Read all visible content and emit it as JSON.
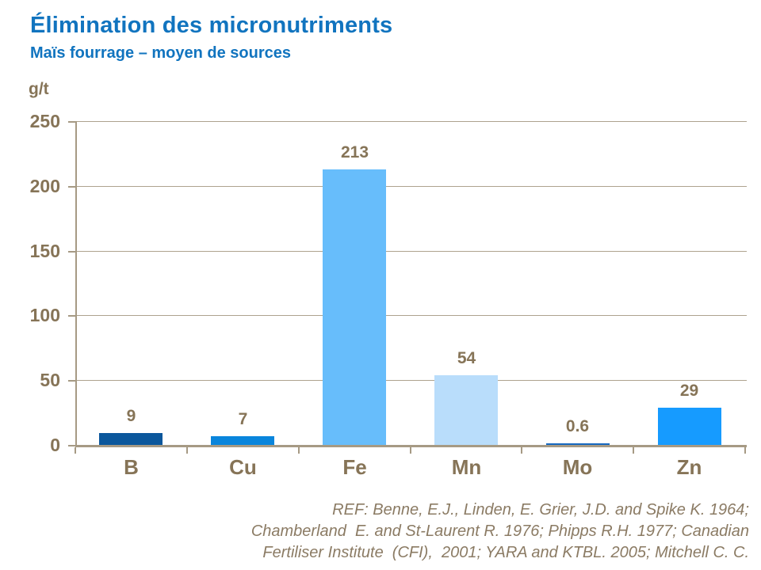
{
  "slide": {
    "title": "Élimination des micronutriments",
    "subtitle": "Maïs fourrage – moyen de sources",
    "reference_lines": [
      "REF: Benne, E.J., Linden, E. Grier, J.D. and Spike K. 1964;",
      "Chamberland  E. and St-Laurent R. 1976; Phipps R.H. 1977; Canadian",
      "Fertiliser Institute  (CFI),  2001; YARA and KTBL. 2005; Mitchell C. C."
    ]
  },
  "chart_data": {
    "type": "bar",
    "title": "Élimination des micronutriments",
    "subtitle": "Maïs fourrage – moyen de sources",
    "unit_label": "g/t",
    "categories": [
      "B",
      "Cu",
      "Fe",
      "Mn",
      "Mo",
      "Zn"
    ],
    "values": [
      9,
      7,
      213,
      54,
      0.6,
      29
    ],
    "value_labels": [
      "9",
      "7",
      "213",
      "54",
      "0.6",
      "29"
    ],
    "bar_colors": [
      "#0B579C",
      "#0985DC",
      "#67BDFB",
      "#B9DDFB",
      "#1668C0",
      "#169BFF"
    ],
    "xlabel": "",
    "ylabel": "g/t",
    "ylim": [
      0,
      250
    ],
    "yticks": [
      0,
      50,
      100,
      150,
      200,
      250
    ],
    "grid": true,
    "legend": false
  },
  "colors": {
    "title_text": "#1174BF",
    "axis_text": "#867457",
    "axis_line": "#A69A84",
    "gridline": "#AEA28E",
    "reference_text": "#8B7B64",
    "background": "#FFFFFF"
  }
}
